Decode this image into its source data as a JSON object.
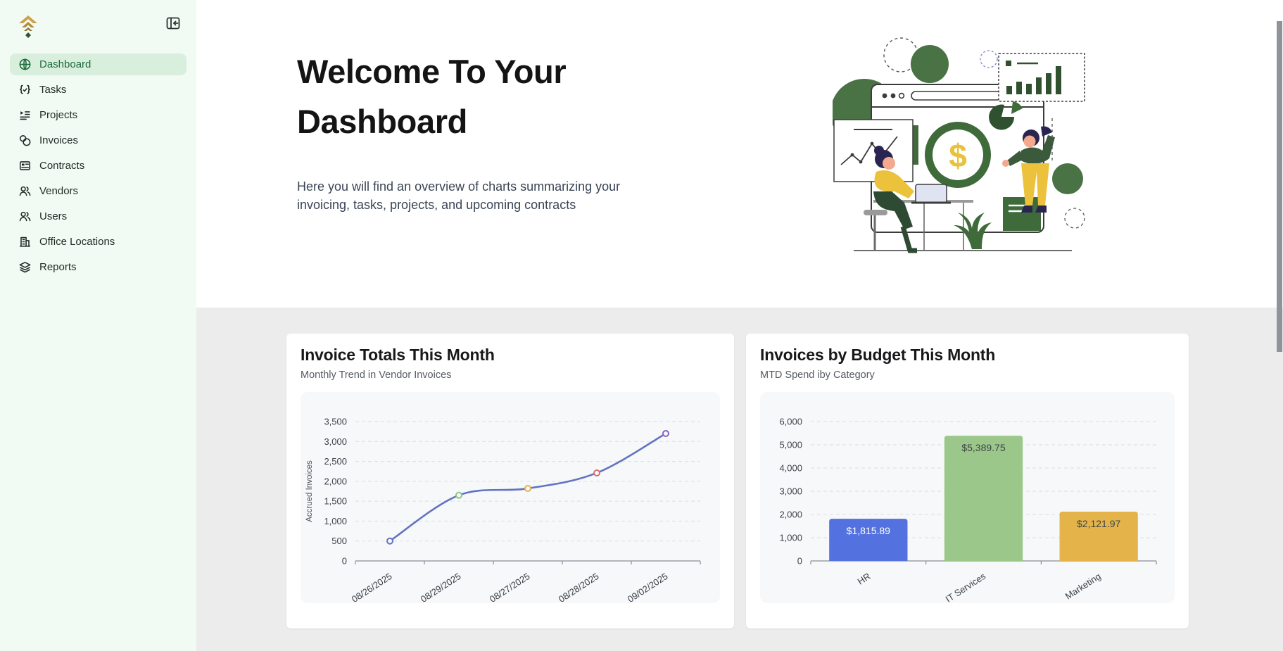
{
  "sidebar": {
    "items": [
      {
        "label": "Dashboard",
        "icon": "globe-icon",
        "active": true
      },
      {
        "label": "Tasks",
        "icon": "braces-check-icon",
        "active": false
      },
      {
        "label": "Projects",
        "icon": "list-play-icon",
        "active": false
      },
      {
        "label": "Invoices",
        "icon": "coins-icon",
        "active": false
      },
      {
        "label": "Contracts",
        "icon": "contract-icon",
        "active": false
      },
      {
        "label": "Vendors",
        "icon": "people-icon",
        "active": false
      },
      {
        "label": "Users",
        "icon": "people-icon",
        "active": false
      },
      {
        "label": "Office Locations",
        "icon": "building-icon",
        "active": false
      },
      {
        "label": "Reports",
        "icon": "layers-icon",
        "active": false
      }
    ]
  },
  "hero": {
    "title": "Welcome To Your Dashboard",
    "description": "Here you will find an overview of charts summarizing your invoicing, tasks, projects, and upcoming contracts"
  },
  "chart_data": [
    {
      "type": "line",
      "title": "Invoice Totals This Month",
      "subtitle": "Monthly Trend in Vendor Invoices",
      "ylabel": "Accrued Invoices",
      "categories": [
        "08/26/2025",
        "08/29/2025",
        "08/27/2025",
        "08/28/2025",
        "09/02/2025"
      ],
      "values": [
        500,
        1650,
        1820,
        2210,
        3200
      ],
      "ylim": [
        0,
        3500
      ],
      "ytick_step": 500,
      "grid": "dashed",
      "line_color": "#6274c1",
      "point_colors": [
        "#6274c1",
        "#86c886",
        "#e0b34f",
        "#d4706f",
        "#8763c5"
      ]
    },
    {
      "type": "bar",
      "title": "Invoices by Budget This Month",
      "subtitle": "MTD Spend iby Category",
      "categories": [
        "HR",
        "IT Services",
        "Marketing"
      ],
      "values": [
        1815.89,
        5389.75,
        2121.97
      ],
      "bar_labels": [
        "$1,815.89",
        "$5,389.75",
        "$2,121.97"
      ],
      "bar_colors": [
        "#5372e0",
        "#9bc88a",
        "#e4b44b"
      ],
      "label_colors": [
        "#ffffff",
        "#3f4347",
        "#3f4347"
      ],
      "ylim": [
        0,
        6000
      ],
      "ytick_step": 1000,
      "grid": "dashed"
    }
  ],
  "colors": {
    "sidebar_bg": "#f2faf4",
    "active_item_bg": "#d9efdd",
    "active_item_text": "#1d6a3c",
    "section_bg": "#ececec",
    "panel_bg": "#f7f8f9",
    "accent_green": "#3f6b3b",
    "accent_gold": "#c9a24a"
  }
}
